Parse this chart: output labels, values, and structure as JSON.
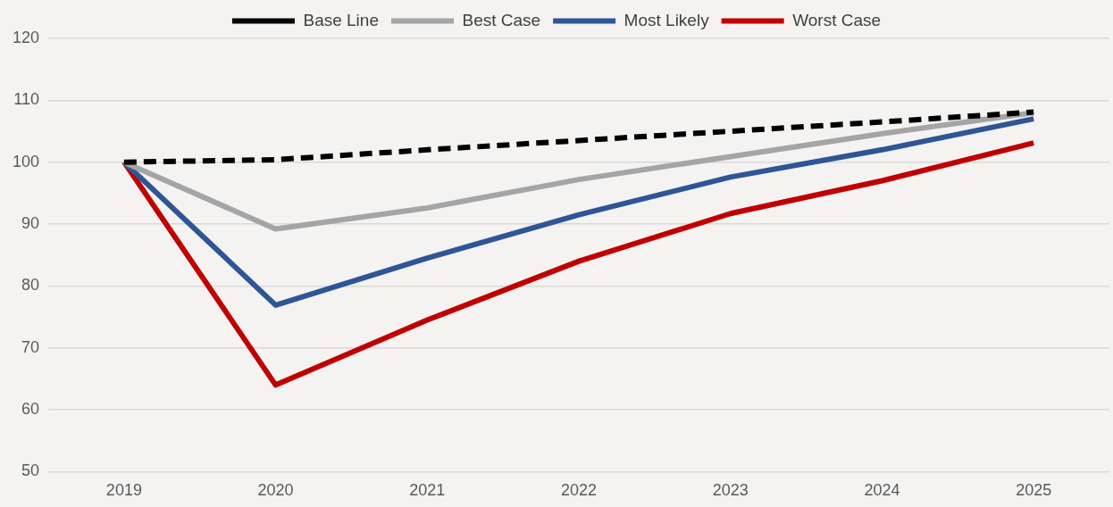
{
  "chart_data": {
    "type": "line",
    "categories": [
      "2019",
      "2020",
      "2021",
      "2022",
      "2023",
      "2024",
      "2025"
    ],
    "series": [
      {
        "name": "Base Line",
        "color": "#000000",
        "line_style": "dashed",
        "values": [
          100,
          100.4,
          102,
          103.5,
          105,
          106.5,
          108.1
        ]
      },
      {
        "name": "Best Case",
        "color": "#a5a5a5",
        "line_style": "solid",
        "values": [
          100,
          89.2,
          92.6,
          97.2,
          100.9,
          104.6,
          108
        ]
      },
      {
        "name": "Most Likely",
        "color": "#2f5597",
        "line_style": "solid",
        "values": [
          100,
          76.9,
          84.5,
          91.5,
          97.6,
          102,
          107
        ]
      },
      {
        "name": "Worst Case",
        "color": "#c00000",
        "line_style": "solid",
        "values": [
          100,
          64,
          74.5,
          84,
          91.7,
          97,
          103.1
        ]
      }
    ],
    "ylim": [
      50,
      120
    ],
    "yticks": [
      50,
      60,
      70,
      80,
      90,
      100,
      110,
      120
    ],
    "grid": "y",
    "legend": "top",
    "marker": "none"
  }
}
